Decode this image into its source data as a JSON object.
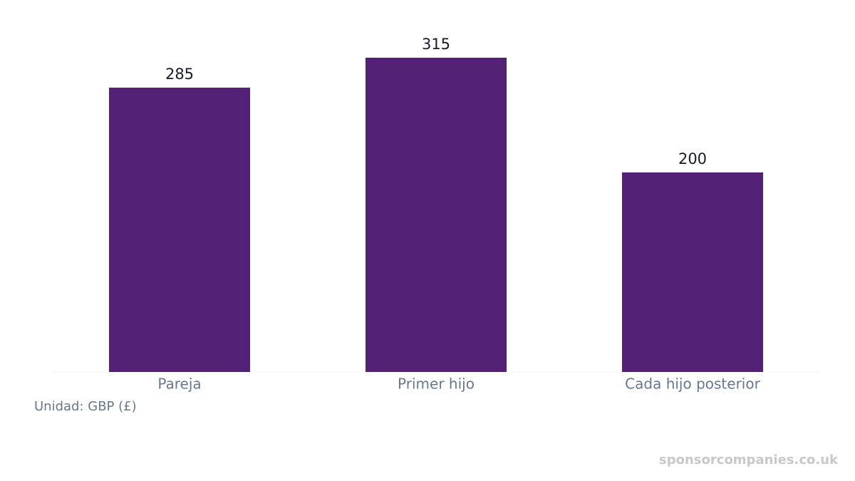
{
  "chart_data": {
    "type": "bar",
    "categories": [
      "Pareja",
      "Primer hijo",
      "Cada hijo posterior"
    ],
    "values": [
      285,
      315,
      200
    ],
    "color": "#532277",
    "unit_note": "Unidad: GBP (£)",
    "watermark": "sponsorcompanies.co.uk"
  }
}
